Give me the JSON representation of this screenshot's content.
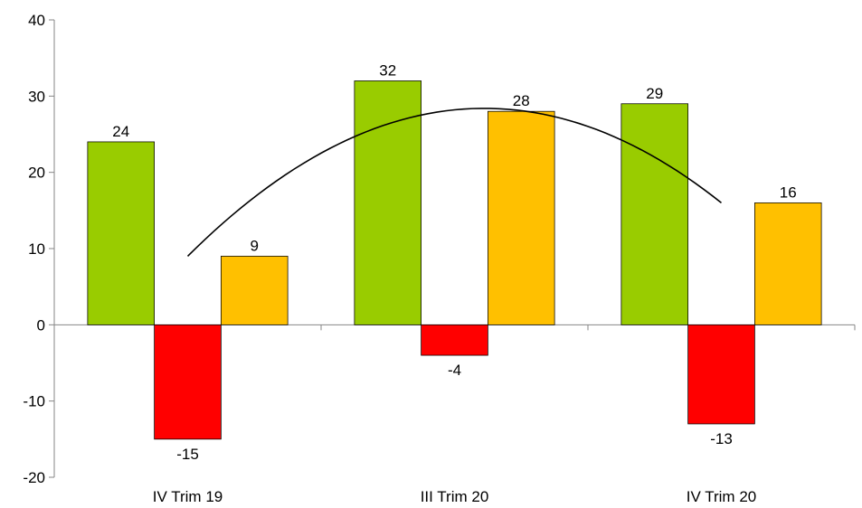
{
  "chart_data": {
    "type": "bar",
    "title": "",
    "xlabel": "",
    "ylabel": "",
    "categories": [
      "IV Trim 19",
      "III Trim 20",
      "IV Trim 20"
    ],
    "series": [
      {
        "color": "#99CC00",
        "values": [
          24,
          32,
          29
        ]
      },
      {
        "color": "#FF0000",
        "values": [
          -15,
          -4,
          -13
        ]
      },
      {
        "color": "#FFC000",
        "values": [
          9,
          28,
          16
        ]
      }
    ],
    "trendline": {
      "type": "polynomial",
      "color": "#000000",
      "points": [
        {
          "x": "IV Trim 19",
          "y": 9
        },
        {
          "x": "III Trim 20",
          "y": 28.2
        },
        {
          "x": "IV Trim 20",
          "y": 16
        }
      ]
    },
    "ylim": [
      -20,
      40
    ],
    "yticks": [
      -20,
      -10,
      0,
      10,
      20,
      30,
      40
    ],
    "grid": false,
    "legend": "none"
  }
}
